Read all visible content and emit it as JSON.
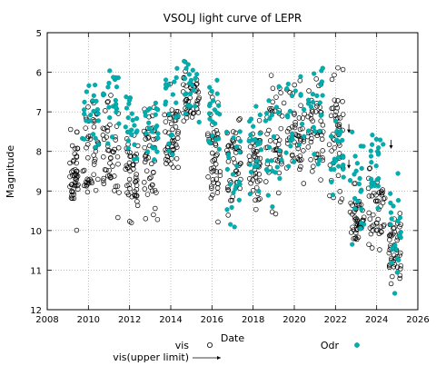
{
  "chart_data": {
    "type": "scatter",
    "title": "VSOLJ light curve of LEPR",
    "xlabel": "Date",
    "ylabel": "Magnitude",
    "xlim": [
      2008,
      2026
    ],
    "ylim": [
      12,
      5
    ],
    "y_inverted": true,
    "x_ticks": [
      "2008",
      "2010",
      "2012",
      "2014",
      "2016",
      "2018",
      "2020",
      "2022",
      "2024",
      "2026"
    ],
    "y_ticks": [
      "5",
      "6",
      "7",
      "8",
      "9",
      "10",
      "11",
      "12"
    ],
    "legend": {
      "placement": "bottom",
      "entries": [
        "vis",
        "vis(upper limit)",
        "Odr"
      ]
    },
    "colors": {
      "vis": "#000000",
      "odr": "#00b0b0"
    },
    "seasons": [
      {
        "x_range": [
          2009.1,
          2009.5
        ],
        "vis_range": [
          7.2,
          10.0
        ],
        "odr_range": null
      },
      {
        "x_range": [
          2009.7,
          2010.5
        ],
        "vis_range": [
          6.0,
          9.9
        ],
        "odr_range": [
          5.9,
          8.3
        ]
      },
      {
        "x_range": [
          2010.7,
          2011.5
        ],
        "vis_range": [
          6.4,
          9.8
        ],
        "odr_range": [
          5.8,
          8.0
        ]
      },
      {
        "x_range": [
          2011.8,
          2012.4
        ],
        "vis_range": [
          7.0,
          9.9
        ],
        "odr_range": [
          6.6,
          8.4
        ]
      },
      {
        "x_range": [
          2012.7,
          2013.4
        ],
        "vis_range": [
          6.5,
          10.0
        ],
        "odr_range": [
          6.6,
          8.4
        ]
      },
      {
        "x_range": [
          2013.7,
          2014.4
        ],
        "vis_range": [
          6.2,
          9.2
        ],
        "odr_range": [
          5.7,
          8.3
        ]
      },
      {
        "x_range": [
          2014.6,
          2015.4
        ],
        "vis_range": [
          5.9,
          7.5
        ],
        "odr_range": [
          5.6,
          7.3
        ]
      },
      {
        "x_range": [
          2015.8,
          2016.4
        ],
        "vis_range": [
          6.4,
          9.8
        ],
        "odr_range": [
          6.1,
          8.6
        ]
      },
      {
        "x_range": [
          2016.7,
          2017.4
        ],
        "vis_range": [
          7.0,
          9.7
        ],
        "odr_range": [
          6.9,
          10.4
        ]
      },
      {
        "x_range": [
          2017.8,
          2018.4
        ],
        "vis_range": [
          7.0,
          9.7
        ],
        "odr_range": [
          6.8,
          9.1
        ]
      },
      {
        "x_range": [
          2018.6,
          2019.5
        ],
        "vis_range": [
          5.8,
          9.6
        ],
        "odr_range": [
          6.1,
          9.4
        ]
      },
      {
        "x_range": [
          2019.6,
          2020.5
        ],
        "vis_range": [
          6.1,
          9.0
        ],
        "odr_range": [
          6.1,
          8.4
        ]
      },
      {
        "x_range": [
          2020.6,
          2021.4
        ],
        "vis_range": [
          6.0,
          9.0
        ],
        "odr_range": [
          5.8,
          8.4
        ]
      },
      {
        "x_range": [
          2021.7,
          2022.4
        ],
        "vis_range": [
          5.8,
          9.3
        ],
        "odr_range": [
          7.2,
          9.1
        ]
      },
      {
        "x_range": [
          2022.7,
          2023.4
        ],
        "vis_range": [
          8.8,
          10.7
        ],
        "odr_range": [
          7.3,
          10.9
        ]
      },
      {
        "x_range": [
          2023.6,
          2024.4
        ],
        "vis_range": [
          8.3,
          10.7
        ],
        "odr_range": [
          7.3,
          9.5
        ]
      },
      {
        "x_range": [
          2024.6,
          2025.2
        ],
        "vis_range": [
          9.1,
          11.6
        ],
        "odr_range": [
          8.4,
          11.7
        ]
      }
    ],
    "upper_limits": [
      {
        "x": 2022.65,
        "y": 7.4
      },
      {
        "x": 2022.65,
        "y": 8.3
      },
      {
        "x": 2024.7,
        "y": 7.8
      }
    ]
  }
}
